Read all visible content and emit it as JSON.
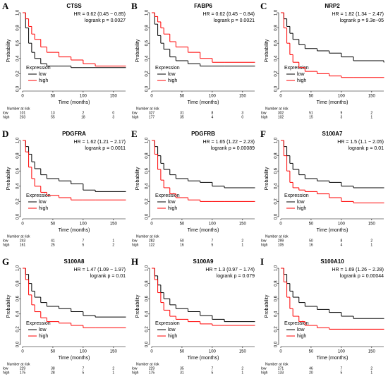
{
  "chart_data": [
    {
      "type": "line",
      "label": "A",
      "title": "CTSS",
      "hr": "HR = 0.62 (0.45 − 0.85)",
      "logrank": "logrank p = 0.0027",
      "ylabel": "Probability",
      "xlabel": "Time (months)",
      "legend_title": "Expression",
      "at_risk_title": "Number at risk",
      "x": [
        0,
        5,
        10,
        15,
        20,
        30,
        40,
        60,
        80,
        100,
        120,
        170
      ],
      "xlim": [
        0,
        170
      ],
      "xticks": [
        0,
        50,
        100,
        150
      ],
      "ylim": [
        0,
        1
      ],
      "yticks": [
        {
          "value": 0,
          "label": "0.0"
        },
        0.2,
        0.4,
        0.6,
        0.8,
        {
          "value": 1,
          "label": "1.0"
        }
      ],
      "series": [
        {
          "name": "low",
          "color": "#000000",
          "values": [
            1,
            0.8,
            0.6,
            0.48,
            0.4,
            0.33,
            0.3,
            0.3,
            0.28,
            0.28,
            0.28,
            0.28
          ],
          "at_risk": [
            101,
            13,
            2,
            0
          ]
        },
        {
          "name": "high",
          "color": "#ff0000",
          "values": [
            1,
            0.92,
            0.82,
            0.72,
            0.65,
            0.55,
            0.48,
            0.42,
            0.38,
            0.33,
            0.3,
            0.3
          ],
          "at_risk": [
            203,
            55,
            18,
            3
          ]
        }
      ]
    },
    {
      "type": "line",
      "label": "B",
      "title": "FABP6",
      "hr": "HR = 0.62 (0.45 − 0.84)",
      "logrank": "logrank p = 0.0021",
      "ylabel": "Probability",
      "xlabel": "Time (months)",
      "legend_title": "Expression",
      "at_risk_title": "Number at risk",
      "x": [
        0,
        5,
        10,
        15,
        20,
        30,
        40,
        60,
        80,
        100,
        120,
        170
      ],
      "xlim": [
        0,
        170
      ],
      "xticks": [
        0,
        50,
        100,
        150
      ],
      "ylim": [
        0,
        1
      ],
      "yticks": [
        {
          "value": 0,
          "label": "0.0"
        },
        0.2,
        0.4,
        0.6,
        0.8,
        {
          "value": 1,
          "label": "1.0"
        }
      ],
      "series": [
        {
          "name": "low",
          "color": "#000000",
          "values": [
            1,
            0.85,
            0.7,
            0.6,
            0.52,
            0.42,
            0.37,
            0.33,
            0.3,
            0.3,
            0.3,
            0.3
          ],
          "at_risk": [
            327,
            31,
            8,
            3
          ]
        },
        {
          "name": "high",
          "color": "#ff0000",
          "values": [
            1,
            0.95,
            0.88,
            0.8,
            0.72,
            0.62,
            0.55,
            0.48,
            0.4,
            0.35,
            0.35,
            0.35
          ],
          "at_risk": [
            177,
            35,
            4,
            0
          ]
        }
      ]
    },
    {
      "type": "line",
      "label": "C",
      "title": "NRP2",
      "hr": "HR = 1.82 (1.34 − 2.47)",
      "logrank": "logrank p = 9.3e−05",
      "ylabel": "Probability",
      "xlabel": "Time (months)",
      "legend_title": "Expression",
      "at_risk_title": "Number at risk",
      "x": [
        0,
        5,
        10,
        15,
        20,
        30,
        40,
        60,
        80,
        100,
        120,
        170
      ],
      "xlim": [
        0,
        170
      ],
      "xticks": [
        0,
        50,
        100,
        150
      ],
      "ylim": [
        0,
        1
      ],
      "yticks": [
        {
          "value": 0,
          "label": "0.0"
        },
        0.2,
        0.4,
        0.6,
        0.8,
        {
          "value": 1,
          "label": "1.0"
        }
      ],
      "series": [
        {
          "name": "low",
          "color": "#000000",
          "values": [
            1,
            0.92,
            0.82,
            0.73,
            0.65,
            0.58,
            0.53,
            0.5,
            0.47,
            0.42,
            0.37,
            0.35
          ],
          "at_risk": [
            302,
            51,
            9,
            2
          ]
        },
        {
          "name": "high",
          "color": "#ff0000",
          "values": [
            1,
            0.8,
            0.6,
            0.45,
            0.35,
            0.28,
            0.23,
            0.2,
            0.17,
            0.15,
            0.15,
            0.15
          ],
          "at_risk": [
            102,
            15,
            3,
            1
          ]
        }
      ]
    },
    {
      "type": "line",
      "label": "D",
      "title": "PDGFRA",
      "hr": "HR = 1.62 (1.21 − 2.17)",
      "logrank": "logrank p = 0.0011",
      "ylabel": "Probability",
      "xlabel": "Time (months)",
      "legend_title": "Expression",
      "at_risk_title": "Number at risk",
      "x": [
        0,
        5,
        10,
        15,
        20,
        30,
        40,
        60,
        80,
        100,
        120,
        170
      ],
      "xlim": [
        0,
        170
      ],
      "xticks": [
        0,
        50,
        100,
        150
      ],
      "ylim": [
        0,
        1
      ],
      "yticks": [
        {
          "value": 0,
          "label": "0.0"
        },
        0.2,
        0.4,
        0.6,
        0.8,
        {
          "value": 1,
          "label": "1.0"
        }
      ],
      "series": [
        {
          "name": "low",
          "color": "#000000",
          "values": [
            1,
            0.92,
            0.82,
            0.72,
            0.63,
            0.55,
            0.5,
            0.47,
            0.43,
            0.35,
            0.33,
            0.33
          ],
          "at_risk": [
            243,
            41,
            7,
            1
          ]
        },
        {
          "name": "high",
          "color": "#ff0000",
          "values": [
            1,
            0.85,
            0.65,
            0.5,
            0.4,
            0.32,
            0.28,
            0.25,
            0.22,
            0.22,
            0.22,
            0.22
          ],
          "at_risk": [
            161,
            25,
            5,
            2
          ]
        }
      ]
    },
    {
      "type": "line",
      "label": "E",
      "title": "PDGFRB",
      "hr": "HR = 1.65 (1.22 − 2.23)",
      "logrank": "logrank p = 0.00089",
      "ylabel": "Probability",
      "xlabel": "Time (months)",
      "legend_title": "Expression",
      "at_risk_title": "Number at risk",
      "x": [
        0,
        5,
        10,
        15,
        20,
        30,
        40,
        60,
        80,
        100,
        120,
        170
      ],
      "xlim": [
        0,
        170
      ],
      "xticks": [
        0,
        50,
        100,
        150
      ],
      "ylim": [
        0,
        1
      ],
      "yticks": [
        {
          "value": 0,
          "label": "0.0"
        },
        0.2,
        0.4,
        0.6,
        0.8,
        {
          "value": 1,
          "label": "1.0"
        }
      ],
      "series": [
        {
          "name": "low",
          "color": "#000000",
          "values": [
            1,
            0.92,
            0.8,
            0.7,
            0.62,
            0.55,
            0.5,
            0.47,
            0.45,
            0.4,
            0.38,
            0.38
          ],
          "at_risk": [
            282,
            50,
            7,
            2
          ]
        },
        {
          "name": "high",
          "color": "#ff0000",
          "values": [
            1,
            0.82,
            0.62,
            0.48,
            0.38,
            0.3,
            0.25,
            0.22,
            0.2,
            0.2,
            0.2,
            0.2
          ],
          "at_risk": [
            122,
            16,
            5,
            1
          ]
        }
      ]
    },
    {
      "type": "line",
      "label": "F",
      "title": "S100A7",
      "hr": "HR = 1.5 (1.1 − 2.05)",
      "logrank": "logrank p = 0.01",
      "ylabel": "Probability",
      "xlabel": "Time (months)",
      "legend_title": "Expression",
      "at_risk_title": "Number at risk",
      "x": [
        0,
        5,
        10,
        15,
        20,
        30,
        40,
        60,
        80,
        100,
        120,
        170
      ],
      "xlim": [
        0,
        170
      ],
      "xticks": [
        0,
        50,
        100,
        150
      ],
      "ylim": [
        0,
        1
      ],
      "yticks": [
        {
          "value": 0,
          "label": "0.0"
        },
        0.2,
        0.4,
        0.6,
        0.8,
        {
          "value": 1,
          "label": "1.0"
        }
      ],
      "series": [
        {
          "name": "low",
          "color": "#000000",
          "values": [
            1,
            0.92,
            0.8,
            0.7,
            0.62,
            0.55,
            0.5,
            0.47,
            0.45,
            0.4,
            0.38,
            0.38
          ],
          "at_risk": [
            299,
            50,
            8,
            2
          ]
        },
        {
          "name": "high",
          "color": "#ff0000",
          "values": [
            1,
            0.8,
            0.6,
            0.45,
            0.38,
            0.35,
            0.33,
            0.3,
            0.25,
            0.2,
            0.18,
            0.18
          ],
          "at_risk": [
            105,
            16,
            4,
            1
          ]
        }
      ]
    },
    {
      "type": "line",
      "label": "G",
      "title": "S100A8",
      "hr": "HR = 1.47 (1.09 − 1.97)",
      "logrank": "logrank p = 0.01",
      "ylabel": "Probability",
      "xlabel": "Time (months)",
      "legend_title": "Expression",
      "at_risk_title": "Number at risk",
      "x": [
        0,
        5,
        10,
        15,
        20,
        30,
        40,
        60,
        80,
        100,
        120,
        170
      ],
      "xlim": [
        0,
        170
      ],
      "xticks": [
        0,
        50,
        100,
        150
      ],
      "ylim": [
        0,
        1
      ],
      "yticks": [
        {
          "value": 0,
          "label": "0.0"
        },
        0.2,
        0.4,
        0.6,
        0.8,
        {
          "value": 1,
          "label": "1.0"
        }
      ],
      "series": [
        {
          "name": "low",
          "color": "#000000",
          "values": [
            1,
            0.92,
            0.8,
            0.7,
            0.62,
            0.55,
            0.5,
            0.47,
            0.43,
            0.38,
            0.36,
            0.36
          ],
          "at_risk": [
            229,
            38,
            7,
            2
          ]
        },
        {
          "name": "high",
          "color": "#ff0000",
          "values": [
            1,
            0.85,
            0.65,
            0.52,
            0.43,
            0.35,
            0.3,
            0.28,
            0.25,
            0.22,
            0.22,
            0.22
          ],
          "at_risk": [
            175,
            28,
            5,
            1
          ]
        }
      ]
    },
    {
      "type": "line",
      "label": "H",
      "title": "S100A9",
      "hr": "HR = 1.3 (0.97 − 1.74)",
      "logrank": "logrank p = 0.079",
      "ylabel": "Probability",
      "xlabel": "Time (months)",
      "legend_title": "Expression",
      "at_risk_title": "Number at risk",
      "x": [
        0,
        5,
        10,
        15,
        20,
        30,
        40,
        60,
        80,
        100,
        120,
        170
      ],
      "xlim": [
        0,
        170
      ],
      "xticks": [
        0,
        50,
        100,
        150
      ],
      "ylim": [
        0,
        1
      ],
      "yticks": [
        {
          "value": 0,
          "label": "0.0"
        },
        0.2,
        0.4,
        0.6,
        0.8,
        {
          "value": 1,
          "label": "1.0"
        }
      ],
      "series": [
        {
          "name": "low",
          "color": "#000000",
          "values": [
            1,
            0.9,
            0.78,
            0.68,
            0.6,
            0.52,
            0.47,
            0.43,
            0.38,
            0.33,
            0.3,
            0.3
          ],
          "at_risk": [
            229,
            35,
            7,
            2
          ]
        },
        {
          "name": "high",
          "color": "#ff0000",
          "values": [
            1,
            0.85,
            0.68,
            0.55,
            0.45,
            0.37,
            0.33,
            0.3,
            0.27,
            0.25,
            0.25,
            0.25
          ],
          "at_risk": [
            175,
            31,
            5,
            1
          ]
        }
      ]
    },
    {
      "type": "line",
      "label": "I",
      "title": "S100A10",
      "hr": "HR = 1.69 (1.26 − 2.28)",
      "logrank": "logrank p = 0.00044",
      "ylabel": "Probability",
      "xlabel": "Time (months)",
      "legend_title": "Expression",
      "at_risk_title": "Number at risk",
      "x": [
        0,
        5,
        10,
        15,
        20,
        30,
        40,
        60,
        80,
        100,
        120,
        170
      ],
      "xlim": [
        0,
        170
      ],
      "xticks": [
        0,
        50,
        100,
        150
      ],
      "ylim": [
        0,
        1
      ],
      "yticks": [
        {
          "value": 0,
          "label": "0.0"
        },
        0.2,
        0.4,
        0.6,
        0.8,
        {
          "value": 1,
          "label": "1.0"
        }
      ],
      "series": [
        {
          "name": "low",
          "color": "#000000",
          "values": [
            1,
            0.92,
            0.8,
            0.7,
            0.62,
            0.55,
            0.5,
            0.46,
            0.42,
            0.37,
            0.34,
            0.34
          ],
          "at_risk": [
            271,
            46,
            7,
            2
          ]
        },
        {
          "name": "high",
          "color": "#ff0000",
          "values": [
            1,
            0.82,
            0.62,
            0.47,
            0.37,
            0.3,
            0.25,
            0.22,
            0.2,
            0.2,
            0.2,
            0.2
          ],
          "at_risk": [
            133,
            20,
            5,
            1
          ]
        }
      ]
    }
  ]
}
